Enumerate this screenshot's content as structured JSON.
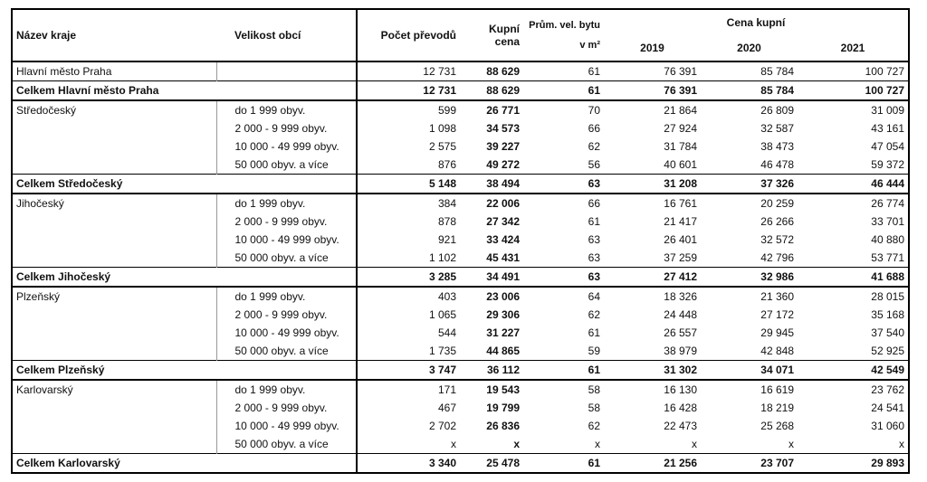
{
  "table": {
    "headers": {
      "region": "Název kraje",
      "size": "Velikost obcí",
      "count": "Počet převodů",
      "price": "Kupní cena",
      "area": "Prům. vel. bytu v m²",
      "group": "Cena kupní",
      "years": [
        "2019",
        "2020",
        "2021"
      ]
    },
    "groups": [
      {
        "region": "Hlavní město Praha",
        "rows": [
          {
            "cells": [
              "12 731",
              "88 629",
              "61",
              "76 391",
              "85 784",
              "100 727"
            ]
          }
        ],
        "total": {
          "label": "Celkem Hlavní město Praha",
          "cells": [
            "12 731",
            "88 629",
            "61",
            "76 391",
            "85 784",
            "100 727"
          ]
        }
      },
      {
        "region": "Středočeský",
        "rows": [
          {
            "size": "do 1 999 obyv.",
            "cells": [
              "599",
              "26 771",
              "70",
              "21 864",
              "26 809",
              "31 009"
            ]
          },
          {
            "size": "2 000 - 9 999 obyv.",
            "cells": [
              "1 098",
              "34 573",
              "66",
              "27 924",
              "32 587",
              "43 161"
            ]
          },
          {
            "size": "10 000 - 49 999 obyv.",
            "cells": [
              "2 575",
              "39 227",
              "62",
              "31 784",
              "38 473",
              "47 054"
            ]
          },
          {
            "size": "50 000 obyv. a více",
            "cells": [
              "876",
              "49 272",
              "56",
              "40 601",
              "46 478",
              "59 372"
            ]
          }
        ],
        "total": {
          "label": "Celkem Středočeský",
          "cells": [
            "5 148",
            "38 494",
            "63",
            "31 208",
            "37 326",
            "46 444"
          ]
        }
      },
      {
        "region": "Jihočeský",
        "rows": [
          {
            "size": "do 1 999 obyv.",
            "cells": [
              "384",
              "22 006",
              "66",
              "16 761",
              "20 259",
              "26 774"
            ]
          },
          {
            "size": "2 000 - 9 999 obyv.",
            "cells": [
              "878",
              "27 342",
              "61",
              "21 417",
              "26 266",
              "33 701"
            ]
          },
          {
            "size": "10 000 - 49 999 obyv.",
            "cells": [
              "921",
              "33 424",
              "63",
              "26 401",
              "32 572",
              "40 880"
            ]
          },
          {
            "size": "50 000 obyv. a více",
            "cells": [
              "1 102",
              "45 431",
              "63",
              "37 259",
              "42 796",
              "53 771"
            ]
          }
        ],
        "total": {
          "label": "Celkem Jihočeský",
          "cells": [
            "3 285",
            "34 491",
            "63",
            "27 412",
            "32 986",
            "41 688"
          ]
        }
      },
      {
        "region": "Plzeňský",
        "rows": [
          {
            "size": "do 1 999 obyv.",
            "cells": [
              "403",
              "23 006",
              "64",
              "18 326",
              "21 360",
              "28 015"
            ]
          },
          {
            "size": "2 000 - 9 999 obyv.",
            "cells": [
              "1 065",
              "29 306",
              "62",
              "24 448",
              "27 172",
              "35 168"
            ]
          },
          {
            "size": "10 000 - 49 999 obyv.",
            "cells": [
              "544",
              "31 227",
              "61",
              "26 557",
              "29 945",
              "37 540"
            ]
          },
          {
            "size": "50 000 obyv. a více",
            "cells": [
              "1 735",
              "44 865",
              "59",
              "38 979",
              "42 848",
              "52 925"
            ]
          }
        ],
        "total": {
          "label": "Celkem Plzeňský",
          "cells": [
            "3 747",
            "36 112",
            "61",
            "31 302",
            "34 071",
            "42 549"
          ]
        }
      },
      {
        "region": "Karlovarský",
        "rows": [
          {
            "size": "do 1 999 obyv.",
            "cells": [
              "171",
              "19 543",
              "58",
              "16 130",
              "16 619",
              "23 762"
            ]
          },
          {
            "size": "2 000 - 9 999 obyv.",
            "cells": [
              "467",
              "19 799",
              "58",
              "16 428",
              "18 219",
              "24 541"
            ]
          },
          {
            "size": "10 000 - 49 999 obyv.",
            "cells": [
              "2 702",
              "26 836",
              "62",
              "22 473",
              "25 268",
              "31 060"
            ]
          },
          {
            "size": "50 000 obyv. a více",
            "cells": [
              "x",
              "x",
              "x",
              "x",
              "x",
              "x"
            ]
          }
        ],
        "total": {
          "label": "Celkem Karlovarský",
          "cells": [
            "3 340",
            "25 478",
            "61",
            "21 256",
            "23 707",
            "29 893"
          ]
        }
      }
    ]
  }
}
